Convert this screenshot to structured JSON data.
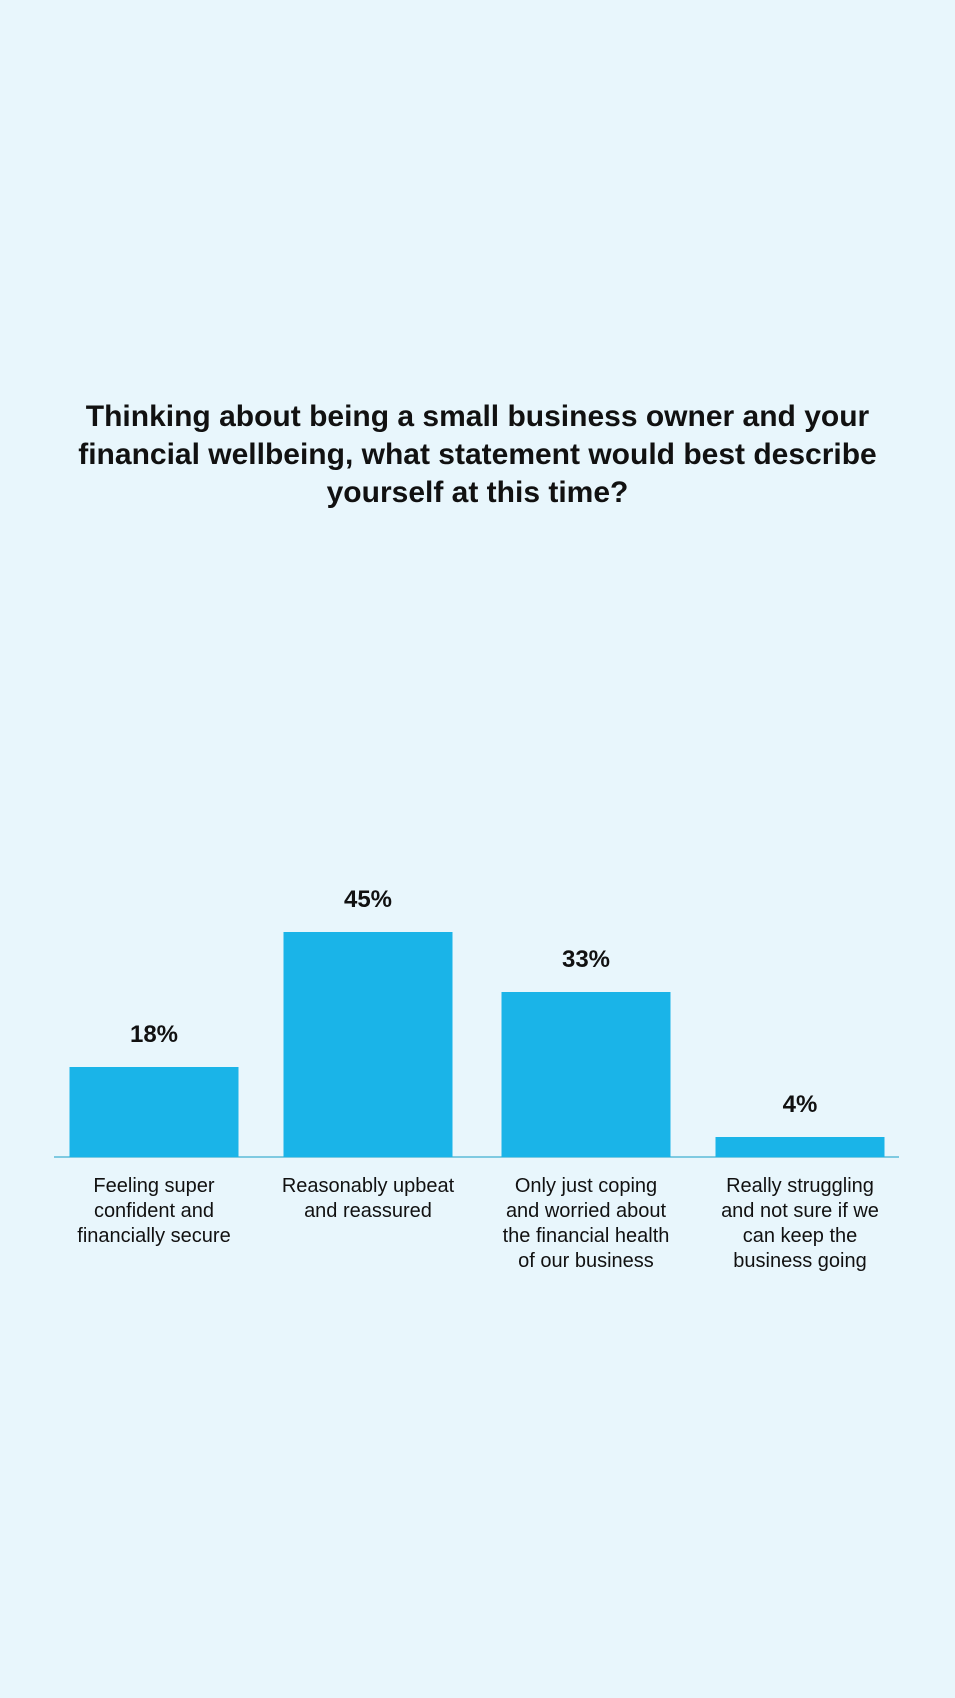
{
  "chart_data": {
    "type": "bar",
    "title": "Thinking about being a small business owner and your financial wellbeing, what statement would best describe yourself at this time?",
    "categories": [
      "Feeling super confident and financially secure",
      "Reasonably upbeat and reassured",
      "Only just coping and worried about the financial health of our business",
      "Really struggling and not sure if we can keep the business going"
    ],
    "values": [
      18,
      45,
      33,
      4
    ],
    "value_labels": [
      "18%",
      "45%",
      "33%",
      "4%"
    ],
    "color": "#1ab4e8"
  }
}
